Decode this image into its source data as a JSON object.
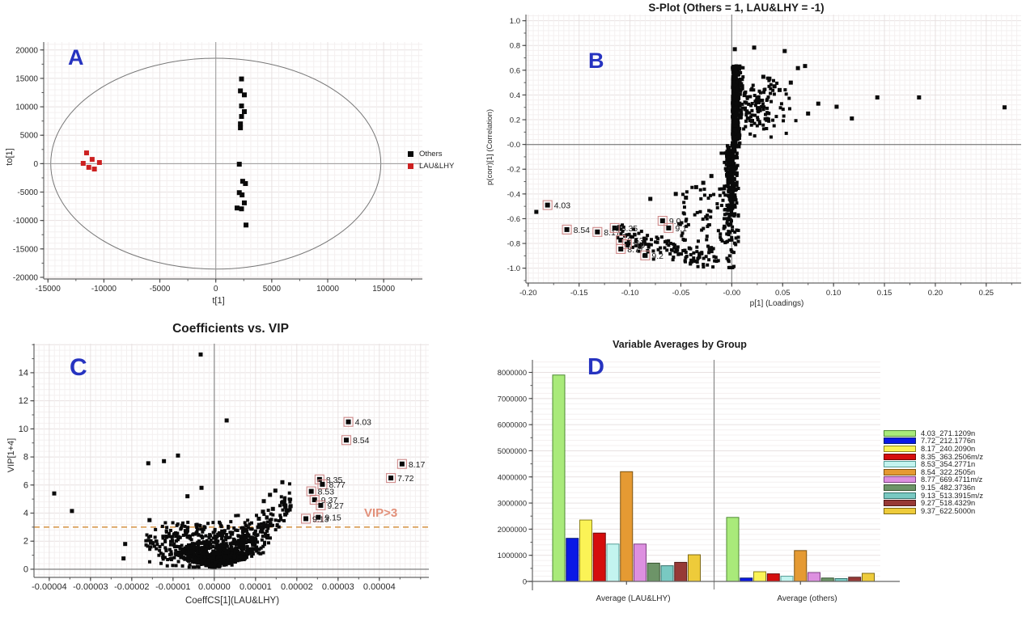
{
  "chart_data": [
    {
      "id": "A",
      "type": "scatter",
      "panel_letter": "A",
      "title": "",
      "xlabel": "t[1]",
      "ylabel": "to[1]",
      "xlim": [
        -15380,
        18460
      ],
      "ylim": [
        -20290,
        21390
      ],
      "xticks": [
        {
          "v": -15000,
          "label": "-15000"
        },
        {
          "v": -10000,
          "label": "-10000"
        },
        {
          "v": -5000,
          "label": "-5000"
        },
        {
          "v": 0,
          "label": "0"
        },
        {
          "v": 5000,
          "label": "5000"
        },
        {
          "v": 10000,
          "label": "10000"
        },
        {
          "v": 15000,
          "label": "15000"
        }
      ],
      "yticks": [
        {
          "v": -20000,
          "label": "-20000"
        },
        {
          "v": -15000,
          "label": "-15000"
        },
        {
          "v": -10000,
          "label": "-10000"
        },
        {
          "v": -5000,
          "label": "-5000"
        },
        {
          "v": 0,
          "label": "0"
        },
        {
          "v": 5000,
          "label": "5000"
        },
        {
          "v": 10000,
          "label": "10000"
        },
        {
          "v": 15000,
          "label": "15000"
        },
        {
          "v": 20000,
          "label": "20000"
        }
      ],
      "ellipse": {
        "cx": 0,
        "cy": 0,
        "rx": 14750,
        "ry": 18550
      },
      "series": [
        {
          "name": "Others",
          "color": "#0a0a0a",
          "points": [
            [
              2300,
              14900
            ],
            [
              2200,
              12800
            ],
            [
              2550,
              12100
            ],
            [
              2300,
              10150
            ],
            [
              2550,
              9150
            ],
            [
              2300,
              8300
            ],
            [
              2200,
              7000
            ],
            [
              2200,
              6300
            ],
            [
              2100,
              -100
            ],
            [
              2400,
              -3100
            ],
            [
              2650,
              -3500
            ],
            [
              2100,
              -5100
            ],
            [
              2350,
              -5500
            ],
            [
              2550,
              -6900
            ],
            [
              1900,
              -7800
            ],
            [
              2300,
              -7950
            ],
            [
              2700,
              -10800
            ]
          ]
        },
        {
          "name": "LAU&LHY",
          "color": "#cc2020",
          "points": [
            [
              -11550,
              1890
            ],
            [
              -11050,
              750
            ],
            [
              -11850,
              50
            ],
            [
              -10400,
              200
            ],
            [
              -11350,
              -650
            ],
            [
              -10850,
              -950
            ]
          ]
        }
      ]
    },
    {
      "id": "B",
      "type": "scatter",
      "panel_letter": "B",
      "title": "S-Plot (Others = 1, LAU&LHY = -1)",
      "xlabel": "p[1] (Loadings)",
      "ylabel": "p(corr)[1] (Correlation)",
      "xlim": [
        -0.2022,
        0.2843
      ],
      "ylim": [
        -1.12,
        1.05
      ],
      "xticks": [
        {
          "v": -0.2,
          "label": "-0.20"
        },
        {
          "v": -0.15,
          "label": "-0.15"
        },
        {
          "v": -0.1,
          "label": "-0.10"
        },
        {
          "v": -0.05,
          "label": "-0.05"
        },
        {
          "v": 0,
          "label": "-0.00"
        },
        {
          "v": 0.05,
          "label": "0.05"
        },
        {
          "v": 0.1,
          "label": "0.10"
        },
        {
          "v": 0.15,
          "label": "0.15"
        },
        {
          "v": 0.2,
          "label": "0.20"
        },
        {
          "v": 0.25,
          "label": "0.25"
        }
      ],
      "yticks": [
        {
          "v": 1.0,
          "label": "1.0"
        },
        {
          "v": 0.8,
          "label": "0.8"
        },
        {
          "v": 0.6,
          "label": "0.6"
        },
        {
          "v": 0.4,
          "label": "0.4"
        },
        {
          "v": 0.2,
          "label": "0.2"
        },
        {
          "v": 0,
          "label": "-0.0"
        },
        {
          "v": -0.2,
          "label": "-0.2"
        },
        {
          "v": -0.4,
          "label": "-0.4"
        },
        {
          "v": -0.6,
          "label": "-0.6"
        },
        {
          "v": -0.8,
          "label": "-0.8"
        },
        {
          "v": -1.0,
          "label": "-1.0"
        }
      ],
      "marker_color": "#0a0a0a",
      "label_box_color": "#cf8a8a",
      "clouds": [
        {
          "seed": 7,
          "n": 520,
          "x": {
            "dist": "foldnorm",
            "mu": 0.0006,
            "sigma": 0.0038,
            "min": 0.0002,
            "max": 0.0155
          },
          "y": {
            "dist": "uniform",
            "min": -0.02,
            "max": 0.635
          }
        },
        {
          "seed": 11,
          "n": 115,
          "x": {
            "dist": "foldnorm",
            "mu": 0.012,
            "sigma": 0.019,
            "min": 0.008,
            "max": 0.082
          },
          "y": {
            "dist": "normal",
            "mu": 0.29,
            "sigma": 0.1,
            "min": 0.06,
            "max": 0.56
          }
        },
        {
          "seed": 13,
          "n": 310,
          "x": {
            "dist": "normal",
            "mu": -0.0012,
            "sigma": 0.0034,
            "min": -0.0125,
            "max": 0.0065
          },
          "y": {
            "dist": "negfold",
            "mu": 0.01,
            "sigma": 0.42,
            "min": -0.995,
            "max": -0.01
          }
        },
        {
          "seed": 17,
          "n": 135,
          "x": {
            "dist": "uniform",
            "min": -0.114,
            "max": -0.013
          },
          "y": {
            "dist": "normal",
            "mu": 0,
            "sigma": 0.05,
            "min": -0.99,
            "max": -0.52
          },
          "base": -0.95,
          "slope": -2.0
        },
        {
          "seed": 19,
          "n": 55,
          "x": {
            "dist": "uniform",
            "min": -0.052,
            "max": -0.004
          },
          "y": {
            "dist": "uniform",
            "min": -0.78,
            "max": -0.33
          }
        }
      ],
      "points": [
        [
          0.268,
          0.3
        ],
        [
          0.184,
          0.38
        ],
        [
          0.143,
          0.38
        ],
        [
          0.103,
          0.305
        ],
        [
          0.118,
          0.21
        ],
        [
          0.085,
          0.33
        ],
        [
          0.075,
          0.25
        ],
        [
          0.003,
          0.77
        ],
        [
          0.022,
          0.783
        ],
        [
          0.052,
          0.755
        ],
        [
          0.065,
          0.617
        ],
        [
          0.072,
          0.634
        ],
        [
          0.031,
          0.547
        ],
        [
          0.037,
          0.532
        ],
        [
          0.058,
          0.5
        ],
        [
          0.047,
          0.44
        ],
        [
          0.042,
          0.47
        ],
        [
          -0.192,
          -0.545
        ],
        [
          -0.035,
          -0.345
        ],
        [
          -0.028,
          -0.31
        ],
        [
          -0.02,
          -0.255
        ],
        [
          -0.08,
          -0.44
        ],
        [
          -0.055,
          -0.4
        ],
        [
          -0.045,
          -0.43
        ]
      ],
      "labeled_points": [
        {
          "label": "4.03",
          "x": -0.181,
          "y": -0.49
        },
        {
          "label": "8.54",
          "x": -0.162,
          "y": -0.688
        },
        {
          "label": "8.17",
          "x": -0.132,
          "y": -0.707
        },
        {
          "label": "8.35",
          "x": -0.115,
          "y": -0.675
        },
        {
          "label": "9.0",
          "x": -0.068,
          "y": -0.617
        },
        {
          "label": "9.1",
          "x": -0.062,
          "y": -0.675
        },
        {
          "label": "8.53",
          "x": -0.109,
          "y": -0.773
        },
        {
          "label": "8.6",
          "x": -0.103,
          "y": -0.806
        },
        {
          "label": "8.77",
          "x": -0.109,
          "y": -0.845
        },
        {
          "label": "9.2",
          "x": -0.085,
          "y": -0.897
        }
      ]
    },
    {
      "id": "C",
      "type": "scatter",
      "panel_letter": "C",
      "title": "Coefficients vs. VIP",
      "xlabel": "CoeffCS[1](LAU&LHY)",
      "ylabel": "VIP[1+4]",
      "xlim": [
        -4.37e-05,
        5.2e-05
      ],
      "ylim": [
        -0.58,
        16.07
      ],
      "xticks": [
        {
          "v": -4e-05,
          "label": "-0.00004"
        },
        {
          "v": -3e-05,
          "label": "-0.00003"
        },
        {
          "v": -2e-05,
          "label": "-0.00002"
        },
        {
          "v": -1e-05,
          "label": "-0.00001"
        },
        {
          "v": 0,
          "label": "0.00000"
        },
        {
          "v": 1e-05,
          "label": "0.00001"
        },
        {
          "v": 2e-05,
          "label": "0.00002"
        },
        {
          "v": 3e-05,
          "label": "0.00003"
        },
        {
          "v": 4e-05,
          "label": "0.00004"
        }
      ],
      "yticks": [
        {
          "v": 0,
          "label": "0"
        },
        {
          "v": 2,
          "label": "2"
        },
        {
          "v": 4,
          "label": "4"
        },
        {
          "v": 6,
          "label": "6"
        },
        {
          "v": 8,
          "label": "8"
        },
        {
          "v": 10,
          "label": "10"
        },
        {
          "v": 12,
          "label": "12"
        },
        {
          "v": 14,
          "label": "14"
        }
      ],
      "marker_color": "#0a0a0a",
      "label_box_color": "#cf8a8a",
      "threshold": {
        "y": 3,
        "label": "VIP>3",
        "line_color": "#d89a50",
        "label_color": "#e2907a"
      },
      "clouds": [
        {
          "seed": 23,
          "n": 660,
          "x": {
            "dist": "normal",
            "mu": 0,
            "sigma": 4.6e-06,
            "min": -1.58e-05,
            "max": 1.58e-05
          },
          "y": {
            "dist": "foldnorm",
            "mu": 0.06,
            "sigma": 1.0,
            "min": 0.03,
            "max": 6.3
          },
          "absSlope": 85000
        },
        {
          "seed": 29,
          "n": 150,
          "x": {
            "dist": "uniform",
            "min": 3.5e-06,
            "max": 1.85e-05
          },
          "y": {
            "dist": "normal",
            "mu": 0,
            "sigma": 0.55,
            "min": 0.3,
            "max": 6.1
          },
          "slope": 255000
        },
        {
          "seed": 31,
          "n": 85,
          "x": {
            "dist": "uniform",
            "min": -1.68e-05,
            "max": -3.5e-06
          },
          "y": {
            "dist": "normal",
            "mu": 0,
            "sigma": 0.5,
            "min": 0.15,
            "max": 3.9
          },
          "slope": -125000
        },
        {
          "seed": 37,
          "n": 90,
          "x": {
            "dist": "uniform",
            "min": -1.22e-05,
            "max": 1.38e-05
          },
          "y": {
            "dist": "uniform",
            "min": 1.9,
            "max": 3.35
          }
        }
      ],
      "points": [
        [
          -3.3e-06,
          15.3
        ],
        [
          3e-06,
          10.6
        ],
        [
          -1.22e-05,
          7.7
        ],
        [
          -8.8e-06,
          8.1
        ],
        [
          -1.6e-05,
          7.55
        ],
        [
          -3.88e-05,
          5.4
        ],
        [
          -3.45e-05,
          4.15
        ],
        [
          -2.16e-05,
          1.8
        ],
        [
          -1.57e-05,
          3.5
        ],
        [
          -3.1e-06,
          5.8
        ],
        [
          -6.5e-06,
          5.2
        ],
        [
          -2.2e-05,
          0.77
        ],
        [
          1.65e-05,
          6.2
        ],
        [
          1.48e-05,
          5.6
        ],
        [
          1.35e-05,
          5.3
        ],
        [
          1.2e-05,
          4.85
        ],
        [
          1.42e-05,
          4.3
        ],
        [
          1.18e-05,
          4.1
        ],
        [
          1.08e-05,
          3.6
        ],
        [
          1.72e-05,
          3.9
        ],
        [
          1.85e-05,
          4.5
        ],
        [
          1.78e-05,
          4.2
        ]
      ],
      "labeled_points": [
        {
          "label": "4.03",
          "x": 3.25e-05,
          "y": 10.5
        },
        {
          "label": "8.54",
          "x": 3.2e-05,
          "y": 9.2
        },
        {
          "label": "8.17",
          "x": 4.55e-05,
          "y": 7.5
        },
        {
          "label": "7.72",
          "x": 4.28e-05,
          "y": 6.5
        },
        {
          "label": "8.35",
          "x": 2.55e-05,
          "y": 6.4
        },
        {
          "label": "8.77",
          "x": 2.62e-05,
          "y": 6.05
        },
        {
          "label": "8.53",
          "x": 2.35e-05,
          "y": 5.55
        },
        {
          "label": "9.37",
          "x": 2.43e-05,
          "y": 4.95
        },
        {
          "label": "9.27",
          "x": 2.58e-05,
          "y": 4.55
        },
        {
          "label": "9.15",
          "x": 2.52e-05,
          "y": 3.7
        },
        {
          "label": "9.13",
          "x": 2.22e-05,
          "y": 3.6
        }
      ]
    },
    {
      "id": "D",
      "type": "bar",
      "panel_letter": "D",
      "title": "Variable Averages by Group",
      "categories": [
        "Average (LAU&LHY)",
        "Average (others)"
      ],
      "ylim": [
        0,
        8480000
      ],
      "yticks": [
        {
          "v": 0,
          "label": "0"
        },
        {
          "v": 1000000,
          "label": "1000000"
        },
        {
          "v": 2000000,
          "label": "2000000"
        },
        {
          "v": 3000000,
          "label": "3000000"
        },
        {
          "v": 4000000,
          "label": "4000000"
        },
        {
          "v": 5000000,
          "label": "5000000"
        },
        {
          "v": 6000000,
          "label": "6000000"
        },
        {
          "v": 7000000,
          "label": "7000000"
        },
        {
          "v": 8000000,
          "label": "8000000"
        }
      ],
      "series": [
        {
          "label": "4.03_271.1209n",
          "color": "#a9ea7a",
          "border": "#4e8a33",
          "values": [
            7900000,
            2450000
          ]
        },
        {
          "label": "7.72_212.1776n",
          "color": "#0a18e6",
          "border": "#0a1f70",
          "values": [
            1650000,
            130000
          ]
        },
        {
          "label": "8.17_240.2090n",
          "color": "#fbf356",
          "border": "#8f851e",
          "values": [
            2350000,
            370000
          ]
        },
        {
          "label": "8.35_363.2506m/z",
          "color": "#d50d0d",
          "border": "#6e0808",
          "values": [
            1850000,
            290000
          ]
        },
        {
          "label": "8.53_354.2771n",
          "color": "#c3f4ef",
          "border": "#569e97",
          "values": [
            1430000,
            200000
          ]
        },
        {
          "label": "8.54_322.2505n",
          "color": "#e59a33",
          "border": "#7d5311",
          "values": [
            4200000,
            1180000
          ]
        },
        {
          "label": "8.77_669.4711m/z",
          "color": "#dd90e0",
          "border": "#7e3f82",
          "values": [
            1430000,
            340000
          ]
        },
        {
          "label": "9.15_482.3736n",
          "color": "#6d9468",
          "border": "#37532f",
          "values": [
            700000,
            130000
          ]
        },
        {
          "label": "9.13_513.3915m/z",
          "color": "#79c9c2",
          "border": "#35726c",
          "values": [
            600000,
            110000
          ]
        },
        {
          "label": "9.27_518.4329n",
          "color": "#973936",
          "border": "#521b19",
          "values": [
            730000,
            160000
          ]
        },
        {
          "label": "9.37_622.5000n",
          "color": "#eecb3a",
          "border": "#7e6a16",
          "values": [
            1020000,
            310000
          ]
        }
      ]
    }
  ]
}
